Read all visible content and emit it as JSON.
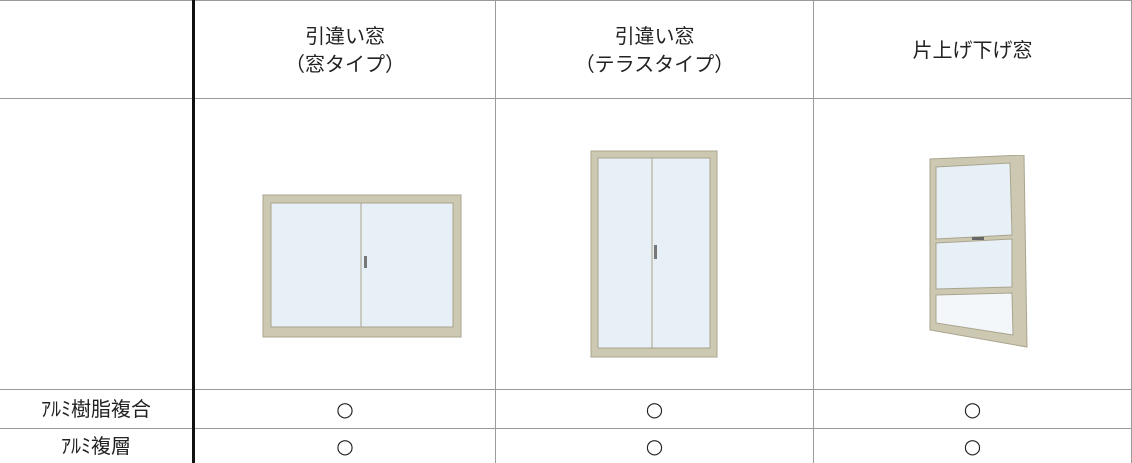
{
  "table": {
    "columns": [
      {
        "lines": [
          "引違い窓",
          "（窓タイプ）"
        ]
      },
      {
        "lines": [
          "引違い窓",
          "（テラスタイプ）"
        ]
      },
      {
        "lines": [
          "片上げ下げ窓"
        ]
      }
    ],
    "rows": [
      {
        "label": "ｱﾙﾐ樹脂複合",
        "cells": [
          "○",
          "○",
          "○"
        ]
      },
      {
        "label": "ｱﾙﾐ複層",
        "cells": [
          "○",
          "○",
          "○"
        ]
      }
    ]
  }
}
